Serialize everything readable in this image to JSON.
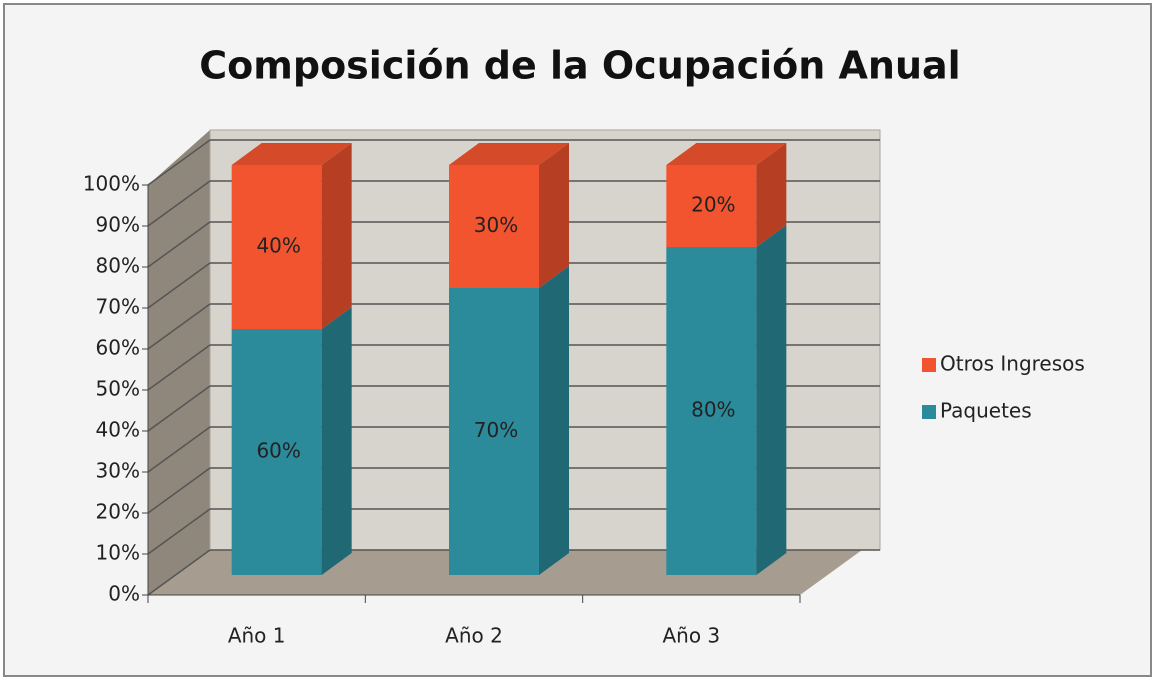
{
  "chart_data": {
    "type": "bar3d_stacked",
    "title": "Composición de la Ocupación Anual",
    "categories": [
      "Año 1",
      "Año 2",
      "Año 3"
    ],
    "series": [
      {
        "name": "Paquetes",
        "color": "#2b8b9b",
        "values": [
          60,
          70,
          80
        ],
        "value_labels": [
          "60%",
          "70%",
          "80%"
        ]
      },
      {
        "name": "Otros Ingresos",
        "color": "#f2542f",
        "values": [
          40,
          30,
          20
        ],
        "value_labels": [
          "40%",
          "30%",
          "20%"
        ]
      }
    ],
    "ylim": [
      0,
      100
    ],
    "yticks": [
      {
        "value": 0,
        "label": "0%"
      },
      {
        "value": 10,
        "label": "10%"
      },
      {
        "value": 20,
        "label": "20%"
      },
      {
        "value": 30,
        "label": "30%"
      },
      {
        "value": 40,
        "label": "40%"
      },
      {
        "value": 50,
        "label": "50%"
      },
      {
        "value": 60,
        "label": "60%"
      },
      {
        "value": 70,
        "label": "70%"
      },
      {
        "value": 80,
        "label": "80%"
      },
      {
        "value": 90,
        "label": "90%"
      },
      {
        "value": 100,
        "label": "100%"
      }
    ],
    "grid": true,
    "legend": "right"
  }
}
